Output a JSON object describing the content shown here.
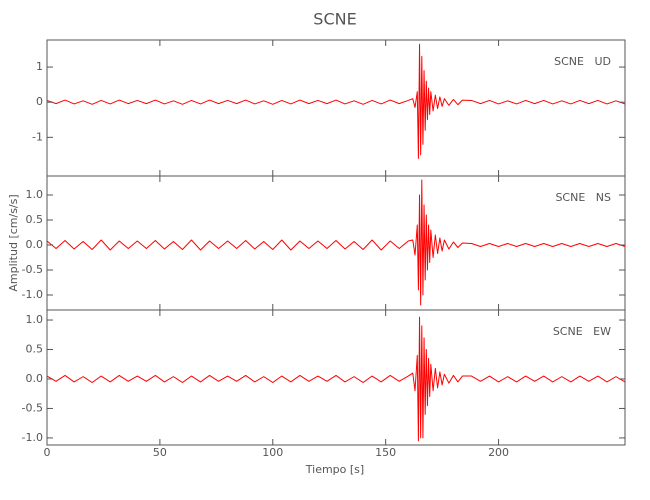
{
  "chart_data": [
    {
      "type": "line",
      "title": "SCNE",
      "name": "SCNE   UD",
      "color": "#ff0000",
      "x": [
        0,
        4,
        8,
        12,
        16,
        20,
        24,
        28,
        32,
        36,
        40,
        44,
        48,
        52,
        56,
        60,
        64,
        68,
        72,
        76,
        80,
        84,
        88,
        92,
        96,
        100,
        104,
        108,
        112,
        116,
        120,
        124,
        128,
        132,
        136,
        140,
        144,
        148,
        152,
        156,
        160,
        162,
        163,
        164,
        164.5,
        165,
        165.5,
        166,
        166.5,
        167,
        167.5,
        168,
        168.5,
        169,
        169.5,
        170,
        171,
        172,
        173,
        174,
        175,
        176,
        178,
        180,
        182,
        184,
        188,
        192,
        196,
        200,
        204,
        208,
        212,
        216,
        220,
        224,
        228,
        232,
        236,
        240,
        244,
        248,
        252,
        256
      ],
      "values": [
        0.05,
        -0.04,
        0.06,
        -0.05,
        0.04,
        -0.06,
        0.05,
        -0.05,
        0.06,
        -0.04,
        0.05,
        -0.04,
        0.06,
        -0.05,
        0.04,
        -0.06,
        0.05,
        -0.05,
        0.06,
        -0.04,
        0.05,
        -0.04,
        0.06,
        -0.05,
        0.04,
        -0.06,
        0.05,
        -0.05,
        0.06,
        -0.04,
        0.05,
        -0.04,
        0.06,
        -0.05,
        0.04,
        -0.06,
        0.05,
        -0.05,
        0.06,
        -0.04,
        0.05,
        0.1,
        -0.15,
        0.3,
        -1.6,
        1.65,
        -1.5,
        1.3,
        -1.2,
        0.9,
        -0.8,
        0.6,
        -0.5,
        0.4,
        -0.35,
        0.3,
        -0.25,
        0.2,
        -0.18,
        0.15,
        -0.12,
        0.1,
        -0.09,
        0.08,
        -0.07,
        0.06,
        0.05,
        -0.04,
        0.05,
        -0.05,
        0.04,
        -0.05,
        0.05,
        -0.04,
        0.05,
        -0.05,
        0.04,
        -0.05,
        0.05,
        -0.04,
        0.05,
        -0.05,
        0.04,
        -0.05
      ],
      "xlim": [
        0,
        256
      ],
      "xticks": [
        0,
        50,
        100,
        150,
        200
      ],
      "ylim": [
        -2.1,
        1.77
      ],
      "yticks": [
        -1,
        0,
        1
      ]
    },
    {
      "type": "line",
      "y_label": "Amplitud [cm/s/s]",
      "name": "SCNE   NS",
      "color": "#ff0000",
      "x": [
        0,
        4,
        8,
        12,
        16,
        20,
        24,
        28,
        32,
        36,
        40,
        44,
        48,
        52,
        56,
        60,
        64,
        68,
        72,
        76,
        80,
        84,
        88,
        92,
        96,
        100,
        104,
        108,
        112,
        116,
        120,
        124,
        128,
        132,
        136,
        140,
        144,
        148,
        152,
        156,
        160,
        162,
        163,
        164,
        164.5,
        165,
        165.5,
        166,
        166.5,
        167,
        167.5,
        168,
        168.5,
        169,
        169.5,
        170,
        171,
        172,
        173,
        174,
        175,
        176,
        178,
        180,
        182,
        184,
        188,
        192,
        196,
        200,
        204,
        208,
        212,
        216,
        220,
        224,
        228,
        232,
        236,
        240,
        244,
        248,
        252,
        256
      ],
      "values": [
        0.08,
        -0.07,
        0.09,
        -0.08,
        0.07,
        -0.09,
        0.1,
        -0.1,
        0.08,
        -0.07,
        0.08,
        -0.07,
        0.09,
        -0.08,
        0.07,
        -0.09,
        0.1,
        -0.1,
        0.08,
        -0.07,
        0.08,
        -0.07,
        0.09,
        -0.08,
        0.07,
        -0.09,
        0.1,
        -0.1,
        0.08,
        -0.07,
        0.08,
        -0.07,
        0.09,
        -0.08,
        0.07,
        -0.09,
        0.1,
        -0.1,
        0.08,
        -0.07,
        0.08,
        0.1,
        -0.2,
        0.4,
        -0.9,
        1.0,
        -1.2,
        1.3,
        -1.0,
        0.8,
        -0.7,
        0.6,
        -0.5,
        0.4,
        -0.35,
        0.3,
        -0.25,
        0.2,
        -0.17,
        0.14,
        -0.12,
        0.1,
        -0.08,
        0.06,
        -0.05,
        0.04,
        0.03,
        -0.03,
        0.03,
        -0.03,
        0.03,
        -0.03,
        0.03,
        -0.03,
        0.03,
        -0.03,
        0.03,
        -0.03,
        0.03,
        -0.03,
        0.03,
        -0.03,
        0.03,
        -0.03
      ],
      "xlim": [
        0,
        256
      ],
      "xticks": [
        0,
        50,
        100,
        150,
        200
      ],
      "ylim": [
        -1.3,
        1.38
      ],
      "yticks": [
        {
          "value": -1,
          "label": "-1.0"
        },
        {
          "value": -0.5,
          "label": "-0.5"
        },
        {
          "value": 0,
          "label": "0.0"
        },
        {
          "value": 0.5,
          "label": "0.5"
        },
        {
          "value": 1,
          "label": "1.0"
        }
      ]
    },
    {
      "type": "line",
      "x_label": "Tiempo [s]",
      "name": "SCNE   EW",
      "color": "#ff0000",
      "x": [
        0,
        4,
        8,
        12,
        16,
        20,
        24,
        28,
        32,
        36,
        40,
        44,
        48,
        52,
        56,
        60,
        64,
        68,
        72,
        76,
        80,
        84,
        88,
        92,
        96,
        100,
        104,
        108,
        112,
        116,
        120,
        124,
        128,
        132,
        136,
        140,
        144,
        148,
        152,
        156,
        160,
        162,
        163,
        164,
        164.5,
        165,
        165.5,
        166,
        166.5,
        167,
        167.5,
        168,
        168.5,
        169,
        169.5,
        170,
        171,
        172,
        173,
        174,
        175,
        176,
        178,
        180,
        182,
        184,
        188,
        192,
        196,
        200,
        204,
        208,
        212,
        216,
        220,
        224,
        228,
        232,
        236,
        240,
        244,
        248,
        252,
        256
      ],
      "values": [
        0.05,
        -0.04,
        0.06,
        -0.05,
        0.04,
        -0.06,
        0.05,
        -0.05,
        0.06,
        -0.04,
        0.05,
        -0.04,
        0.06,
        -0.05,
        0.04,
        -0.06,
        0.05,
        -0.05,
        0.06,
        -0.04,
        0.05,
        -0.04,
        0.06,
        -0.05,
        0.04,
        -0.06,
        0.05,
        -0.05,
        0.06,
        -0.04,
        0.05,
        -0.04,
        0.06,
        -0.05,
        0.04,
        -0.06,
        0.05,
        -0.05,
        0.06,
        -0.04,
        0.05,
        0.1,
        -0.2,
        0.4,
        -1.05,
        1.05,
        -1.0,
        0.9,
        -1.0,
        0.7,
        -0.6,
        0.5,
        -0.45,
        0.35,
        -0.3,
        0.25,
        -0.2,
        0.18,
        -0.15,
        0.12,
        -0.1,
        0.08,
        -0.07,
        0.06,
        -0.05,
        0.05,
        0.05,
        -0.04,
        0.05,
        -0.05,
        0.04,
        -0.05,
        0.05,
        -0.04,
        0.05,
        -0.05,
        0.04,
        -0.05,
        0.05,
        -0.04,
        0.05,
        -0.05,
        0.04,
        -0.05
      ],
      "xlim": [
        0,
        256
      ],
      "xticks": [
        0,
        50,
        100,
        150,
        200
      ],
      "ylim": [
        -1.12,
        1.17
      ],
      "yticks": [
        {
          "value": -1,
          "label": "-1.0"
        },
        {
          "value": -0.5,
          "label": "-0.5"
        },
        {
          "value": 0,
          "label": "0.0"
        },
        {
          "value": 0.5,
          "label": "0.5"
        },
        {
          "value": 1,
          "label": "1.0"
        }
      ]
    }
  ]
}
